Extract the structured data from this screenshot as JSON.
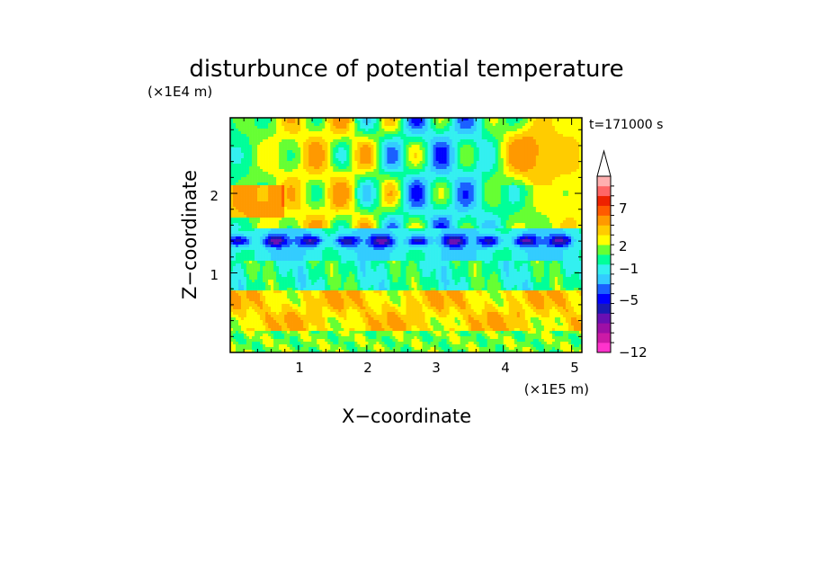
{
  "chart_data": {
    "type": "heatmap",
    "title": "disturbunce of potential temperature",
    "xlabel": "X−coordinate",
    "ylabel": "Z−coordinate",
    "x_unit": "(×1E5 m)",
    "y_unit": "(×1E4 m)",
    "time_label": "t=171000 s",
    "xlim": [
      0,
      5.15
    ],
    "ylim": [
      0,
      2.95
    ],
    "x_ticks": [
      "1",
      "2",
      "3",
      "4",
      "5"
    ],
    "y_ticks": [
      "1",
      "2"
    ],
    "colorbar": {
      "tick_labels": [
        "7",
        "2",
        "−1",
        "−5",
        "−12"
      ],
      "levels": [
        -12,
        -10,
        -8,
        -7,
        -6,
        -5,
        -4,
        -3,
        -2,
        -1,
        0,
        1,
        2,
        3,
        5,
        7,
        9,
        11
      ],
      "colors": [
        "#ff33cc",
        "#cc1aa6",
        "#9e0fa6",
        "#6a0fb3",
        "#1a1ab3",
        "#0000ff",
        "#1a60ff",
        "#33ccff",
        "#33f0f0",
        "#00ff99",
        "#66ff33",
        "#ffff00",
        "#ffcc00",
        "#ff9900",
        "#ff5a00",
        "#ee2200",
        "#ff6666",
        "#ffb0b0"
      ],
      "extend_top": true
    },
    "field_description_bands": [
      {
        "z_range": [
          0,
          0.25
        ],
        "dominant": "green/yellow"
      },
      {
        "z_range": [
          0.3,
          0.75
        ],
        "dominant": "yellow/orange"
      },
      {
        "z_range": [
          0.8,
          1.55
        ],
        "dominant": "cyan/green with blue cells near 1.4"
      },
      {
        "z_range": [
          1.6,
          2.95
        ],
        "dominant": "mixed wave pattern: orange/red and blue cells"
      }
    ]
  }
}
